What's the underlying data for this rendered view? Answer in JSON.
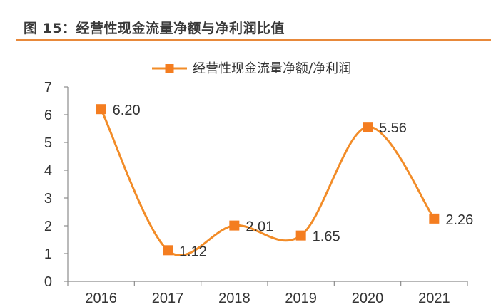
{
  "header": {
    "title": "图 15：经营性现金流量净额与净利润比值"
  },
  "chart_data": {
    "type": "line",
    "title": "图 15：经营性现金流量净额与净利润比值",
    "categories": [
      "2016",
      "2017",
      "2018",
      "2019",
      "2020",
      "2021"
    ],
    "series": [
      {
        "name": "经营性现金流量净额/净利润",
        "values": [
          6.2,
          1.12,
          2.01,
          1.65,
          5.56,
          2.26
        ]
      }
    ],
    "data_labels": [
      "6.20",
      "1.12",
      "2.01",
      "1.65",
      "5.56",
      "2.26"
    ],
    "yticks": [
      "0",
      "1",
      "2",
      "3",
      "4",
      "5",
      "6",
      "7"
    ],
    "ylim": [
      0,
      7
    ],
    "xlabel": "",
    "ylabel": "",
    "grid": false,
    "legend_position": "top-center",
    "smooth": true,
    "marker": "square",
    "colors": {
      "series": "#F28C28",
      "marker": "#F47D20",
      "rule": "#E8893A",
      "axis": "#8C8C8C"
    }
  }
}
